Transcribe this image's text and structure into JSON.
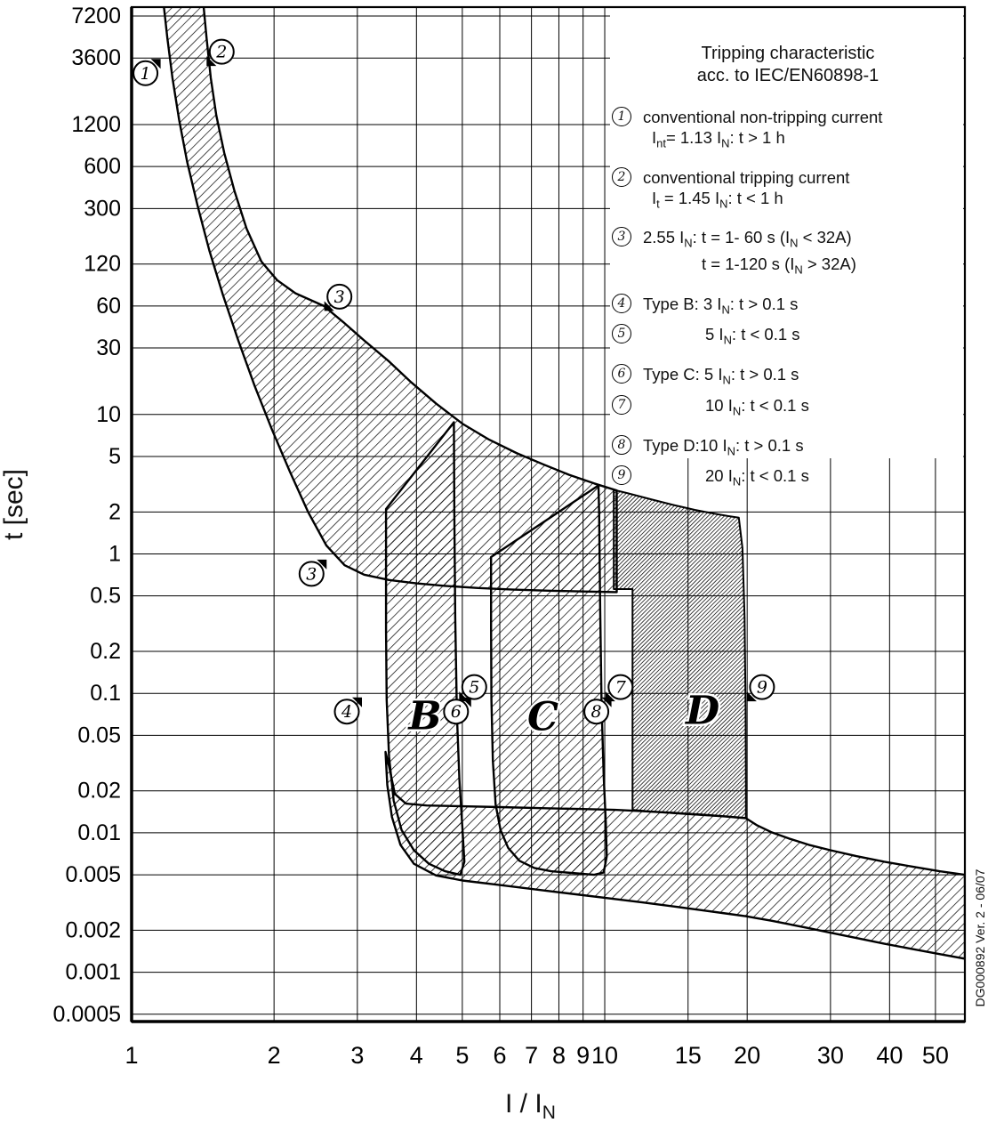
{
  "watermark": "DG000892 Ver. 2 - 06/07",
  "colors": {
    "ink": "#000000",
    "background": "#ffffff"
  },
  "axes": {
    "y_label": "t [sec]",
    "x_label": "I / I~N~"
  },
  "legend": {
    "title1": "Tripping characteristic",
    "title2": "acc. to IEC/EN60898-1",
    "items": [
      {
        "num": "1",
        "lines": [
          "conventional non-tripping current",
          "I~nt~= 1.13 I~N~: t > 1 h"
        ],
        "indent2": 10
      },
      {
        "num": "2",
        "lines": [
          "conventional tripping current",
          "I~t~ = 1.45 I~N~: t < 1 h"
        ],
        "indent2": 10
      },
      {
        "num": "3",
        "lines": [
          "2.55 I~N~: t = 1- 60 s (I~N~ < 32A)",
          "t = 1-120 s (I~N~ > 32A)"
        ],
        "indent2": 66
      },
      {
        "num": "4",
        "lines": [
          "Type B: 3 I~N~: t > 0.1 s"
        ],
        "gap": "s"
      },
      {
        "num": "5",
        "lines": [
          "5 I~N~: t < 0.1 s"
        ],
        "cont": true
      },
      {
        "num": "6",
        "lines": [
          "Type C: 5 I~N~: t > 0.1 s"
        ],
        "gap": "s"
      },
      {
        "num": "7",
        "lines": [
          "10 I~N~: t < 0.1 s"
        ],
        "cont": true
      },
      {
        "num": "8",
        "lines": [
          "Type D:10 I~N~: t > 0.1 s"
        ],
        "gap": "s"
      },
      {
        "num": "9",
        "lines": [
          "20 I~N~: t < 0.1 s"
        ],
        "cont": true
      }
    ]
  },
  "chart_data": {
    "type": "area",
    "title": "Tripping characteristic acc. to IEC/EN60898-1",
    "xlabel": "I / IN",
    "ylabel": "t [sec]",
    "x_log": true,
    "y_log": true,
    "x_range": [
      1,
      57.7
    ],
    "y_range": [
      0.00044,
      8350
    ],
    "x_ticks": [
      1,
      2,
      3,
      4,
      5,
      6,
      7,
      8,
      9,
      10,
      15,
      20,
      30,
      40,
      50
    ],
    "y_ticks": [
      7200,
      3600,
      1200,
      600,
      300,
      120,
      60,
      30,
      10,
      5,
      2,
      1,
      0.5,
      0.2,
      0.1,
      0.05,
      0.02,
      0.01,
      0.005,
      0.002,
      0.001,
      0.0005
    ],
    "grid": true,
    "regions": [
      {
        "name": "thermal-band",
        "style": "light",
        "upper": [
          [
            1.42,
            8400
          ],
          [
            1.44,
            5000
          ],
          [
            1.47,
            2600
          ],
          [
            1.51,
            1400
          ],
          [
            1.57,
            750
          ],
          [
            1.65,
            400
          ],
          [
            1.75,
            215
          ],
          [
            1.88,
            125
          ],
          [
            2.03,
            92
          ],
          [
            2.22,
            74
          ],
          [
            2.55,
            60
          ],
          [
            2.8,
            46
          ],
          [
            3.1,
            34
          ],
          [
            3.5,
            24
          ],
          [
            3.9,
            17
          ],
          [
            4.4,
            12
          ],
          [
            5.0,
            8.6
          ],
          [
            5.7,
            6.6
          ],
          [
            6.5,
            5.3
          ],
          [
            7.4,
            4.4
          ],
          [
            8.4,
            3.7
          ],
          [
            9.5,
            3.2
          ],
          [
            10.6,
            2.85
          ]
        ],
        "lower": [
          [
            1.17,
            8400
          ],
          [
            1.19,
            5000
          ],
          [
            1.22,
            2600
          ],
          [
            1.26,
            1300
          ],
          [
            1.31,
            650
          ],
          [
            1.38,
            310
          ],
          [
            1.46,
            150
          ],
          [
            1.56,
            72
          ],
          [
            1.68,
            34
          ],
          [
            1.82,
            16
          ],
          [
            1.98,
            7.8
          ],
          [
            2.16,
            3.9
          ],
          [
            2.36,
            2.0
          ],
          [
            2.58,
            1.15
          ],
          [
            2.82,
            0.83
          ],
          [
            3.1,
            0.71
          ],
          [
            3.5,
            0.65
          ],
          [
            4.0,
            0.615
          ],
          [
            4.6,
            0.59
          ],
          [
            5.4,
            0.57
          ],
          [
            6.4,
            0.555
          ],
          [
            7.6,
            0.545
          ],
          [
            9.0,
            0.538
          ],
          [
            10.6,
            0.532
          ]
        ]
      },
      {
        "name": "instantaneous-band",
        "style": "light",
        "points": [
          [
            3.5,
            0.03
          ],
          [
            3.6,
            0.019
          ],
          [
            3.8,
            0.0162
          ],
          [
            4.2,
            0.0157
          ],
          [
            5.0,
            0.0155
          ],
          [
            6.0,
            0.0153
          ],
          [
            7.5,
            0.015
          ],
          [
            9.0,
            0.0148
          ],
          [
            10.5,
            0.0146
          ],
          [
            12,
            0.0143
          ],
          [
            14,
            0.0139
          ],
          [
            16,
            0.0135
          ],
          [
            18,
            0.0131
          ],
          [
            19.9,
            0.0127
          ],
          [
            21,
            0.0113
          ],
          [
            22.5,
            0.0101
          ],
          [
            24.5,
            0.0091
          ],
          [
            27,
            0.0082
          ],
          [
            30,
            0.0075
          ],
          [
            34,
            0.0068
          ],
          [
            39,
            0.0062
          ],
          [
            45,
            0.0057
          ],
          [
            51,
            0.0053
          ],
          [
            57.7,
            0.005
          ],
          [
            57.7,
            0.00125
          ],
          [
            51,
            0.00135
          ],
          [
            45,
            0.00146
          ],
          [
            39,
            0.0016
          ],
          [
            34,
            0.00176
          ],
          [
            30,
            0.00192
          ],
          [
            27,
            0.00207
          ],
          [
            24.5,
            0.00221
          ],
          [
            22.5,
            0.00234
          ],
          [
            21,
            0.00244
          ],
          [
            19.9,
            0.00252
          ],
          [
            18,
            0.00264
          ],
          [
            16,
            0.00279
          ],
          [
            14,
            0.00296
          ],
          [
            12,
            0.00317
          ],
          [
            10.5,
            0.00335
          ],
          [
            9.0,
            0.00357
          ],
          [
            7.5,
            0.00385
          ],
          [
            6.0,
            0.00422
          ],
          [
            5.0,
            0.00455
          ],
          [
            4.4,
            0.00495
          ],
          [
            3.95,
            0.006
          ],
          [
            3.7,
            0.0082
          ],
          [
            3.55,
            0.013
          ],
          [
            3.47,
            0.022
          ],
          [
            3.44,
            0.038
          ]
        ]
      },
      {
        "name": "type-b-band",
        "style": "light",
        "trip_range": [
          3,
          5
        ],
        "points": [
          [
            3.45,
            2.1
          ],
          [
            3.45,
            0.28
          ],
          [
            3.46,
            0.09
          ],
          [
            3.5,
            0.035
          ],
          [
            3.58,
            0.017
          ],
          [
            3.72,
            0.0105
          ],
          [
            3.95,
            0.0075
          ],
          [
            4.25,
            0.006
          ],
          [
            4.6,
            0.0053
          ],
          [
            4.95,
            0.005
          ],
          [
            5.05,
            0.0062
          ],
          [
            5.0,
            0.011
          ],
          [
            4.93,
            0.024
          ],
          [
            4.87,
            0.07
          ],
          [
            4.83,
            0.35
          ],
          [
            4.81,
            2.0
          ],
          [
            4.8,
            8.8
          ]
        ]
      },
      {
        "name": "type-c-band",
        "style": "light",
        "trip_range": [
          5,
          10
        ],
        "points": [
          [
            5.75,
            0.95
          ],
          [
            5.75,
            0.3
          ],
          [
            5.76,
            0.09
          ],
          [
            5.8,
            0.033
          ],
          [
            5.88,
            0.016
          ],
          [
            6.02,
            0.0105
          ],
          [
            6.25,
            0.0078
          ],
          [
            6.6,
            0.0063
          ],
          [
            7.1,
            0.0056
          ],
          [
            7.7,
            0.0053
          ],
          [
            9.5,
            0.005
          ],
          [
            9.95,
            0.0052
          ],
          [
            10.1,
            0.0068
          ],
          [
            10.05,
            0.012
          ],
          [
            9.95,
            0.025
          ],
          [
            9.85,
            0.08
          ],
          [
            9.78,
            0.4
          ],
          [
            9.73,
            2.0
          ],
          [
            9.7,
            3.1
          ]
        ]
      },
      {
        "name": "type-d-band",
        "style": "dense",
        "trip_range": [
          10,
          20
        ],
        "points": [
          [
            10.45,
            2.88
          ],
          [
            11.2,
            2.72
          ],
          [
            12.5,
            2.47
          ],
          [
            14,
            2.24
          ],
          [
            15.5,
            2.07
          ],
          [
            17,
            1.95
          ],
          [
            18.2,
            1.87
          ],
          [
            19.2,
            1.82
          ],
          [
            19.55,
            1.1
          ],
          [
            19.75,
            0.35
          ],
          [
            19.85,
            0.08
          ],
          [
            19.88,
            0.022
          ],
          [
            19.88,
            0.0128
          ],
          [
            18,
            0.0131
          ],
          [
            15,
            0.0136
          ],
          [
            12.5,
            0.0142
          ],
          [
            11.45,
            0.0146
          ],
          [
            11.45,
            0.09
          ],
          [
            11.45,
            0.56
          ],
          [
            10.45,
            0.56
          ]
        ]
      }
    ],
    "region_labels": [
      {
        "text": "B",
        "x": 4.17,
        "t": 0.068
      },
      {
        "text": "C",
        "x": 7.4,
        "t": 0.067
      },
      {
        "text": "D",
        "x": 16.1,
        "t": 0.074
      }
    ],
    "markers": [
      {
        "id": "1",
        "x": 1.07,
        "t": 2800,
        "wedge": "ne"
      },
      {
        "id": "2",
        "x": 1.55,
        "t": 4000,
        "wedge": "sw"
      },
      {
        "id": "3",
        "x": 2.75,
        "t": 70,
        "wedge": "sw"
      },
      {
        "id": "3",
        "x": 2.4,
        "t": 0.72,
        "wedge": "ne"
      },
      {
        "id": "4",
        "x": 2.85,
        "t": 0.074,
        "wedge": "ne"
      },
      {
        "id": "5",
        "x": 5.3,
        "t": 0.111,
        "wedge": "sw"
      },
      {
        "id": "6",
        "x": 4.85,
        "t": 0.074,
        "wedge": "ne"
      },
      {
        "id": "7",
        "x": 10.8,
        "t": 0.111,
        "wedge": "sw"
      },
      {
        "id": "8",
        "x": 9.6,
        "t": 0.074,
        "wedge": "ne"
      },
      {
        "id": "9",
        "x": 21.5,
        "t": 0.111,
        "wedge": "sw"
      }
    ]
  }
}
